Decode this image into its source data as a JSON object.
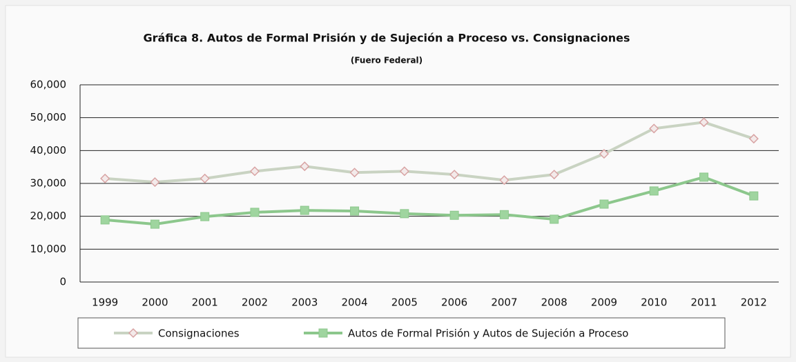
{
  "chart_data": {
    "type": "line",
    "title": "Gráfica 8. Autos de Formal Prisión y de Sujeción a Proceso vs. Consignaciones",
    "subtitle": "(Fuero Federal)",
    "categories": [
      "1999",
      "2000",
      "2001",
      "2002",
      "2003",
      "2004",
      "2005",
      "2006",
      "2007",
      "2008",
      "2009",
      "2010",
      "2011",
      "2012"
    ],
    "series": [
      {
        "name": "Consignaciones",
        "color": "#c9d3c2",
        "marker_color": "#d8a3a3",
        "values": [
          31500,
          30400,
          31500,
          33700,
          35200,
          33300,
          33700,
          32700,
          31000,
          32700,
          39000,
          46700,
          48600,
          43600
        ]
      },
      {
        "name": "Autos de Formal Prisión y Autos de Sujeción a Proceso",
        "color": "#8cc78c",
        "marker_color": "#9fd59f",
        "values": [
          18900,
          17600,
          19900,
          21200,
          21800,
          21600,
          20800,
          20300,
          20500,
          19100,
          23700,
          27700,
          31900,
          26200
        ]
      }
    ],
    "ylim": [
      0,
      60000
    ],
    "yticks": [
      0,
      {
        "value": 10000,
        "label": "10,000"
      },
      {
        "value": 20000,
        "label": "20,000"
      },
      {
        "value": 30000,
        "label": "30,000"
      },
      {
        "value": 40000,
        "label": "40,000"
      },
      {
        "value": 50000,
        "label": "50,000"
      },
      {
        "value": 60000,
        "label": "60,000"
      }
    ],
    "grid": true,
    "legend": "bottom"
  }
}
